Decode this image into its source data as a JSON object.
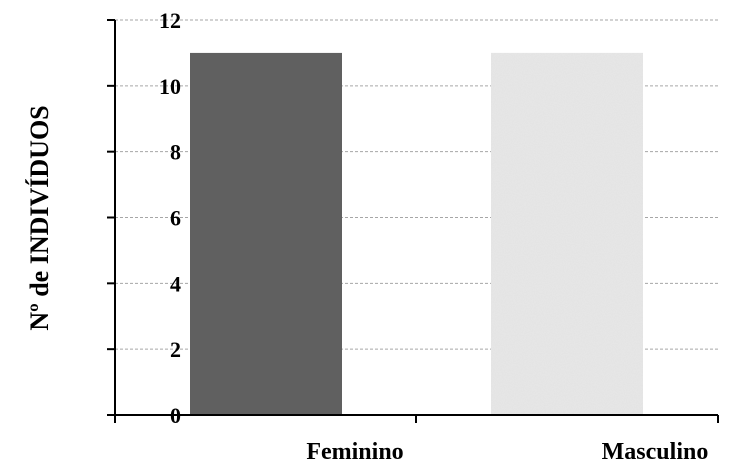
{
  "chart_data": {
    "type": "bar",
    "categories": [
      "Feminino",
      "Masculino"
    ],
    "values": [
      11,
      11
    ],
    "ylabel": "Nº de INDIVÍDUOS",
    "xlabel": "",
    "title": "",
    "ylim": [
      0,
      12
    ],
    "yticks": [
      "0",
      "2",
      "4",
      "6",
      "8",
      "10",
      "12"
    ],
    "grid": true,
    "legend": "none",
    "colors": {
      "feminino_bar": "#606060",
      "masculino_bar": "#e8e8e8",
      "grid": "#a6a6a6",
      "axis": "#000000"
    }
  }
}
